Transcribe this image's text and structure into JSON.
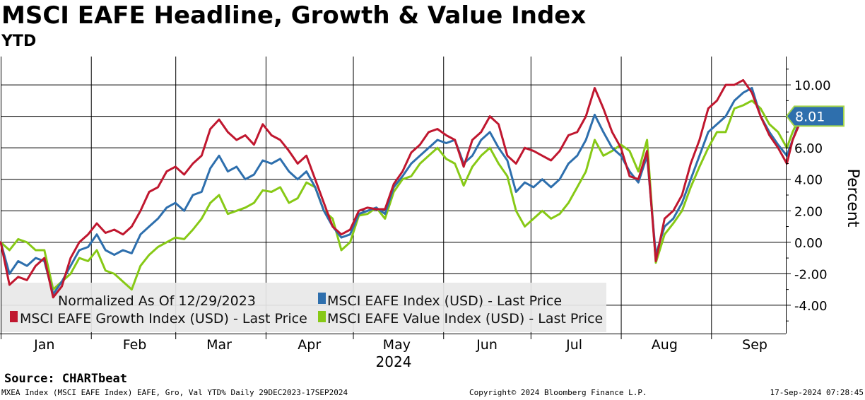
{
  "header": {
    "title": "MSCI EAFE Headline, Growth & Value Index",
    "subtitle": "YTD"
  },
  "footer": {
    "source": "Source: CHARTbeat",
    "description": "MXEA Index (MSCI EAFE Index) EAFE, Gro, Val YTD%  Daily 29DEC2023-17SEP2024",
    "copyright": "Copyright© 2024 Bloomberg Finance L.P.",
    "timestamp": "17-Sep-2024 07:28:45"
  },
  "colors": {
    "headline": "#2e6fad",
    "growth": "#c0172f",
    "value": "#87c916",
    "badge": "#2e6fad",
    "legend_bg": "#e8e8e8"
  },
  "chart_data": {
    "type": "line",
    "title": "MSCI EAFE Headline, Growth & Value Index",
    "subtitle": "YTD",
    "ylabel": "Percent",
    "xlabel": "2024",
    "ylim": [
      -5.8,
      11.8
    ],
    "y_ticks": [
      -4,
      -2,
      0,
      2,
      4,
      6,
      8,
      10
    ],
    "y_tick_labels": [
      "-4.00",
      "-2.00",
      "0.00",
      "2.00",
      "4.00",
      "6.00",
      "8.00",
      "10.00"
    ],
    "x_range_days": [
      0,
      263
    ],
    "month_ticks": [
      {
        "label": "Jan",
        "day": 15
      },
      {
        "label": "Feb",
        "day": 46
      },
      {
        "label": "Mar",
        "day": 75
      },
      {
        "label": "Apr",
        "day": 106
      },
      {
        "label": "May",
        "day": 136
      },
      {
        "label": "Jun",
        "day": 167
      },
      {
        "label": "Jul",
        "day": 197
      },
      {
        "label": "Aug",
        "day": 228
      },
      {
        "label": "Sep",
        "day": 259
      }
    ],
    "month_boundaries": [
      0,
      31,
      60,
      91,
      121,
      152,
      182,
      213,
      244
    ],
    "legend": {
      "note": "Normalized As Of 12/29/2023",
      "position": "bottom-left"
    },
    "last_value_label": "8.01",
    "series": [
      {
        "name": "MSCI EAFE Index (USD) - Last Price",
        "key": "headline",
        "points": [
          [
            0,
            0
          ],
          [
            3,
            -2
          ],
          [
            6,
            -1.2
          ],
          [
            9,
            -1.5
          ],
          [
            12,
            -1
          ],
          [
            15,
            -1.2
          ],
          [
            18,
            -3.3
          ],
          [
            21,
            -2.5
          ],
          [
            24,
            -1.5
          ],
          [
            27,
            -0.5
          ],
          [
            30,
            -0.3
          ],
          [
            33,
            0.5
          ],
          [
            36,
            -0.5
          ],
          [
            39,
            -0.8
          ],
          [
            42,
            -0.5
          ],
          [
            45,
            -0.7
          ],
          [
            48,
            0.5
          ],
          [
            51,
            1
          ],
          [
            54,
            1.5
          ],
          [
            57,
            2.2
          ],
          [
            60,
            2.5
          ],
          [
            63,
            2
          ],
          [
            66,
            3
          ],
          [
            69,
            3.2
          ],
          [
            72,
            4.7
          ],
          [
            75,
            5.5
          ],
          [
            78,
            4.5
          ],
          [
            81,
            4.8
          ],
          [
            84,
            4
          ],
          [
            87,
            4.3
          ],
          [
            90,
            5.2
          ],
          [
            93,
            5
          ],
          [
            96,
            5.3
          ],
          [
            99,
            4.5
          ],
          [
            102,
            4
          ],
          [
            105,
            4.5
          ],
          [
            108,
            3.5
          ],
          [
            111,
            2
          ],
          [
            114,
            1
          ],
          [
            117,
            0.3
          ],
          [
            120,
            0.5
          ],
          [
            123,
            1.8
          ],
          [
            126,
            2
          ],
          [
            129,
            2.2
          ],
          [
            132,
            1.8
          ],
          [
            135,
            3.5
          ],
          [
            138,
            4.2
          ],
          [
            141,
            5
          ],
          [
            144,
            5.5
          ],
          [
            147,
            6
          ],
          [
            150,
            6.5
          ],
          [
            153,
            6.3
          ],
          [
            156,
            6.5
          ],
          [
            159,
            5
          ],
          [
            162,
            5.5
          ],
          [
            165,
            6.5
          ],
          [
            168,
            7
          ],
          [
            171,
            6
          ],
          [
            174,
            5.2
          ],
          [
            177,
            3.2
          ],
          [
            180,
            3.8
          ],
          [
            183,
            3.5
          ],
          [
            186,
            4
          ],
          [
            189,
            3.5
          ],
          [
            192,
            4
          ],
          [
            195,
            5
          ],
          [
            198,
            5.5
          ],
          [
            201,
            6.5
          ],
          [
            204,
            8.1
          ],
          [
            207,
            7
          ],
          [
            210,
            6
          ],
          [
            213,
            5.5
          ],
          [
            216,
            4.5
          ],
          [
            219,
            3.8
          ],
          [
            222,
            5.5
          ],
          [
            225,
            -0.8
          ],
          [
            228,
            1
          ],
          [
            231,
            1.5
          ],
          [
            234,
            2.5
          ],
          [
            237,
            4
          ],
          [
            240,
            5.5
          ],
          [
            243,
            7
          ],
          [
            246,
            7.5
          ],
          [
            249,
            8
          ],
          [
            252,
            9
          ],
          [
            255,
            9.5
          ],
          [
            258,
            9.8
          ],
          [
            261,
            8
          ],
          [
            264,
            7
          ],
          [
            267,
            6.2
          ],
          [
            270,
            5.5
          ],
          [
            272,
            6.5
          ],
          [
            275,
            8.01
          ]
        ]
      },
      {
        "name": "MSCI EAFE Growth Index (USD) - Last Price",
        "key": "growth",
        "points": [
          [
            0,
            0
          ],
          [
            3,
            -2.7
          ],
          [
            6,
            -2.2
          ],
          [
            9,
            -2.4
          ],
          [
            12,
            -1.5
          ],
          [
            15,
            -1
          ],
          [
            18,
            -3.5
          ],
          [
            21,
            -2.8
          ],
          [
            24,
            -1
          ],
          [
            27,
            0
          ],
          [
            30,
            0.5
          ],
          [
            33,
            1.2
          ],
          [
            36,
            0.6
          ],
          [
            39,
            0.8
          ],
          [
            42,
            0.5
          ],
          [
            45,
            1
          ],
          [
            48,
            2
          ],
          [
            51,
            3.2
          ],
          [
            54,
            3.5
          ],
          [
            57,
            4.5
          ],
          [
            60,
            4.8
          ],
          [
            63,
            4.3
          ],
          [
            66,
            5
          ],
          [
            69,
            5.5
          ],
          [
            72,
            7.2
          ],
          [
            75,
            7.8
          ],
          [
            78,
            7
          ],
          [
            81,
            6.5
          ],
          [
            84,
            6.8
          ],
          [
            87,
            6.2
          ],
          [
            90,
            7.5
          ],
          [
            93,
            6.8
          ],
          [
            96,
            6.5
          ],
          [
            99,
            5.8
          ],
          [
            102,
            5
          ],
          [
            105,
            5.5
          ],
          [
            108,
            4
          ],
          [
            111,
            2.5
          ],
          [
            114,
            1
          ],
          [
            117,
            0.5
          ],
          [
            120,
            0.8
          ],
          [
            123,
            2
          ],
          [
            126,
            2.2
          ],
          [
            129,
            2.1
          ],
          [
            132,
            2.1
          ],
          [
            135,
            3.7
          ],
          [
            138,
            4.5
          ],
          [
            141,
            5.7
          ],
          [
            144,
            6.2
          ],
          [
            147,
            7
          ],
          [
            150,
            7.2
          ],
          [
            153,
            6.8
          ],
          [
            156,
            6.5
          ],
          [
            159,
            4.8
          ],
          [
            162,
            6.5
          ],
          [
            165,
            7
          ],
          [
            168,
            8
          ],
          [
            171,
            7.5
          ],
          [
            174,
            5.5
          ],
          [
            177,
            5
          ],
          [
            180,
            6
          ],
          [
            183,
            5.8
          ],
          [
            186,
            5.5
          ],
          [
            189,
            5.2
          ],
          [
            192,
            5.8
          ],
          [
            195,
            6.8
          ],
          [
            198,
            7
          ],
          [
            201,
            8
          ],
          [
            204,
            9.8
          ],
          [
            207,
            8.5
          ],
          [
            210,
            7
          ],
          [
            213,
            6
          ],
          [
            216,
            4.2
          ],
          [
            219,
            4
          ],
          [
            222,
            5.8
          ],
          [
            225,
            -1.2
          ],
          [
            228,
            1.5
          ],
          [
            231,
            2
          ],
          [
            234,
            3
          ],
          [
            237,
            5
          ],
          [
            240,
            6.5
          ],
          [
            243,
            8.5
          ],
          [
            246,
            9
          ],
          [
            249,
            10
          ],
          [
            252,
            10
          ],
          [
            255,
            10.3
          ],
          [
            258,
            9.5
          ],
          [
            261,
            8
          ],
          [
            264,
            6.8
          ],
          [
            267,
            6
          ],
          [
            270,
            5
          ],
          [
            272,
            6.5
          ],
          [
            275,
            7.8
          ]
        ]
      },
      {
        "name": "MSCI EAFE Value Index (USD) - Last Price",
        "key": "value",
        "points": [
          [
            0,
            0
          ],
          [
            3,
            -0.5
          ],
          [
            6,
            0.2
          ],
          [
            9,
            0
          ],
          [
            12,
            -0.5
          ],
          [
            15,
            -0.5
          ],
          [
            18,
            -3
          ],
          [
            21,
            -2.5
          ],
          [
            24,
            -2
          ],
          [
            27,
            -1
          ],
          [
            30,
            -1.2
          ],
          [
            33,
            -0.5
          ],
          [
            36,
            -1.8
          ],
          [
            39,
            -2
          ],
          [
            42,
            -2.5
          ],
          [
            45,
            -3
          ],
          [
            48,
            -1.5
          ],
          [
            51,
            -0.8
          ],
          [
            54,
            -0.3
          ],
          [
            57,
            0
          ],
          [
            60,
            0.3
          ],
          [
            63,
            0.2
          ],
          [
            66,
            0.8
          ],
          [
            69,
            1.5
          ],
          [
            72,
            2.5
          ],
          [
            75,
            3
          ],
          [
            78,
            1.8
          ],
          [
            81,
            2
          ],
          [
            84,
            2.2
          ],
          [
            87,
            2.5
          ],
          [
            90,
            3.3
          ],
          [
            93,
            3.2
          ],
          [
            96,
            3.5
          ],
          [
            99,
            2.5
          ],
          [
            102,
            2.8
          ],
          [
            105,
            3.8
          ],
          [
            108,
            3.5
          ],
          [
            111,
            2
          ],
          [
            114,
            1.5
          ],
          [
            117,
            -0.5
          ],
          [
            120,
            0
          ],
          [
            123,
            1.7
          ],
          [
            126,
            1.8
          ],
          [
            129,
            2.2
          ],
          [
            132,
            1.5
          ],
          [
            135,
            3.2
          ],
          [
            138,
            4
          ],
          [
            141,
            4.2
          ],
          [
            144,
            5
          ],
          [
            147,
            5.5
          ],
          [
            150,
            6
          ],
          [
            153,
            5.3
          ],
          [
            156,
            5
          ],
          [
            159,
            3.6
          ],
          [
            162,
            4.8
          ],
          [
            165,
            5.5
          ],
          [
            168,
            6
          ],
          [
            171,
            5
          ],
          [
            174,
            4.2
          ],
          [
            177,
            2
          ],
          [
            180,
            1
          ],
          [
            183,
            1.5
          ],
          [
            186,
            2
          ],
          [
            189,
            1.5
          ],
          [
            192,
            1.8
          ],
          [
            195,
            2.5
          ],
          [
            198,
            3.5
          ],
          [
            201,
            4.5
          ],
          [
            204,
            6.5
          ],
          [
            207,
            5.5
          ],
          [
            210,
            5.8
          ],
          [
            213,
            6.2
          ],
          [
            216,
            5.8
          ],
          [
            219,
            4.5
          ],
          [
            222,
            6.5
          ],
          [
            225,
            -1.3
          ],
          [
            228,
            0.5
          ],
          [
            231,
            1.2
          ],
          [
            234,
            2
          ],
          [
            237,
            3.5
          ],
          [
            240,
            4.8
          ],
          [
            243,
            6
          ],
          [
            246,
            7
          ],
          [
            249,
            7
          ],
          [
            252,
            8.5
          ],
          [
            255,
            8.7
          ],
          [
            258,
            9
          ],
          [
            261,
            8.5
          ],
          [
            264,
            7.5
          ],
          [
            267,
            7
          ],
          [
            270,
            6
          ],
          [
            272,
            7
          ],
          [
            275,
            8.2
          ]
        ]
      }
    ]
  }
}
